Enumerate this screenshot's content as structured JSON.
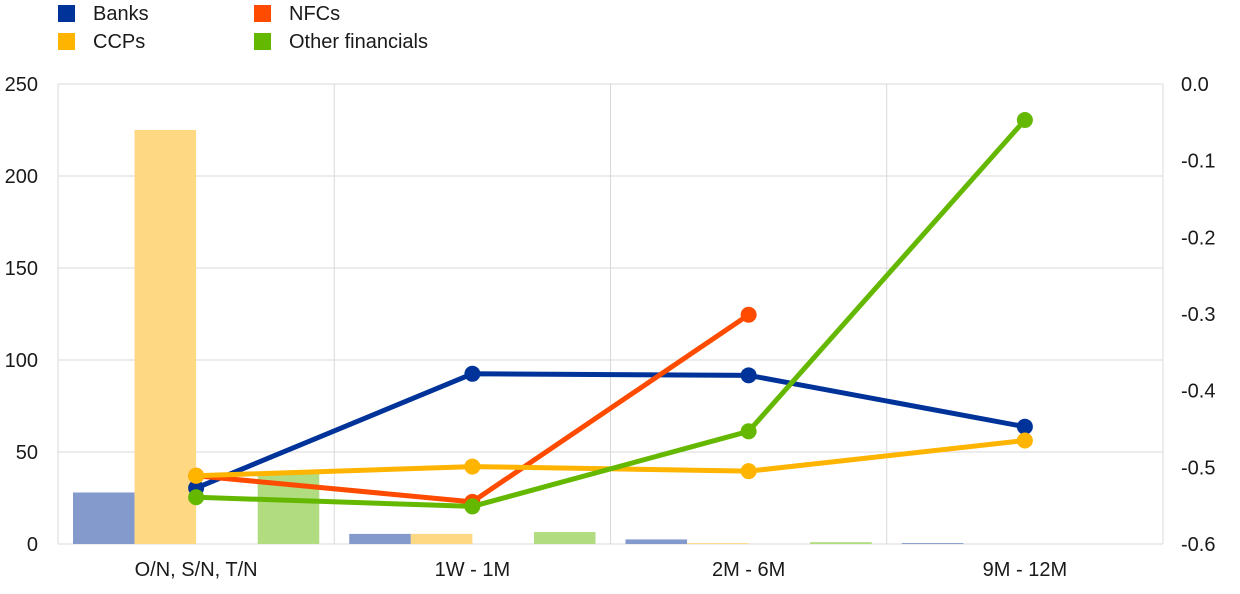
{
  "chart_data": {
    "type": "bar+line",
    "title": "",
    "xlabel": "",
    "ylabel": "",
    "y2label": "",
    "categories": [
      "O/N, S/N, T/N",
      "1W - 1M",
      "2M - 6M",
      "9M - 12M"
    ],
    "ylim": [
      0,
      250
    ],
    "y_ticks": [
      0,
      50,
      100,
      150,
      200,
      250
    ],
    "y2lim": [
      -0.6,
      0.0
    ],
    "y2_ticks": [
      -0.6,
      -0.5,
      -0.4,
      -0.3,
      -0.2,
      -0.1,
      0.0
    ],
    "y2_tick_labels": [
      "-0.6",
      "-0.5",
      "-0.4",
      "-0.3",
      "-0.2",
      "-0.1",
      "0.0"
    ],
    "grid": true,
    "legend_position": "top-left",
    "legend": [
      {
        "label": "Banks",
        "color": "#003399"
      },
      {
        "label": "NFCs",
        "color": "#ff4b00"
      },
      {
        "label": "CCPs",
        "color": "#ffb400"
      },
      {
        "label": "Other financials",
        "color": "#65b800"
      }
    ],
    "bar_series": [
      {
        "name": "Banks",
        "color": "#8499cc",
        "values": [
          28,
          5.5,
          2.5,
          0.5
        ]
      },
      {
        "name": "CCPs",
        "color": "#ffd883",
        "values": [
          225,
          5.5,
          0.5,
          0
        ]
      },
      {
        "name": "NFCs",
        "color": "#ffb590",
        "values": [
          0,
          0,
          0,
          0
        ]
      },
      {
        "name": "Other financials",
        "color": "#b1dc80",
        "values": [
          39,
          6.5,
          1,
          0
        ]
      }
    ],
    "line_series": [
      {
        "name": "Banks",
        "color": "#003399",
        "values": [
          -0.527,
          -0.378,
          -0.38,
          -0.447
        ]
      },
      {
        "name": "NFCs",
        "color": "#ff4b00",
        "values": [
          -0.511,
          -0.545,
          -0.301,
          null
        ]
      },
      {
        "name": "CCPs",
        "color": "#ffb400",
        "values": [
          -0.511,
          -0.499,
          -0.505,
          -0.465
        ]
      },
      {
        "name": "Other financials",
        "color": "#65b800",
        "values": [
          -0.539,
          -0.551,
          -0.453,
          -0.047
        ]
      }
    ]
  }
}
